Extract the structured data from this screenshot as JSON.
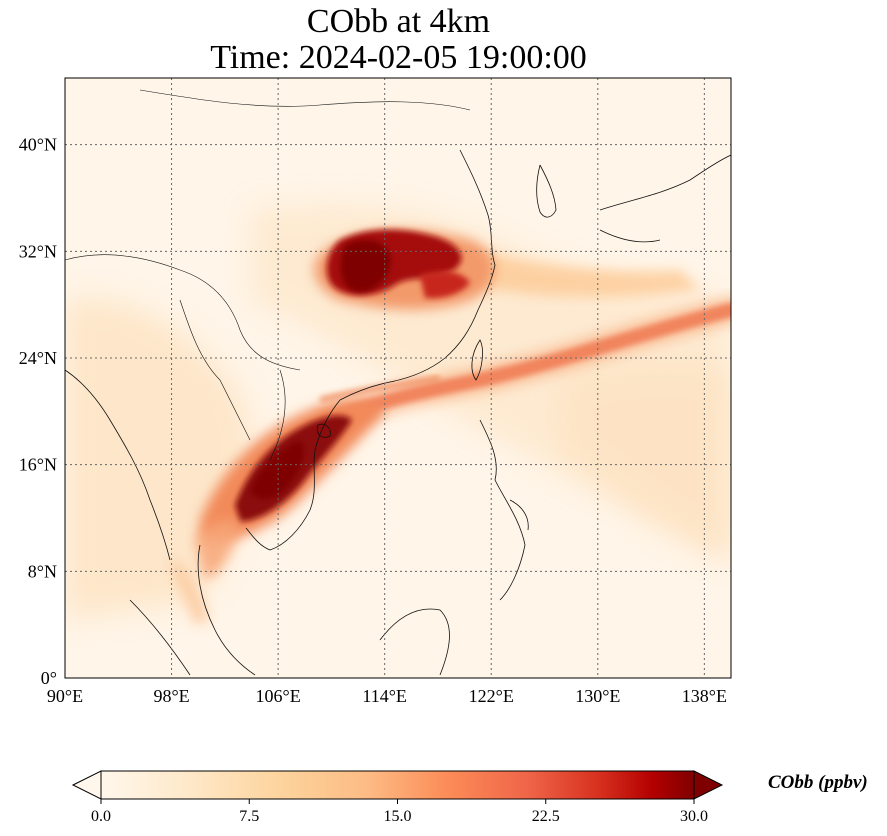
{
  "title": {
    "line1": "CObb at 4km",
    "line2": "Time: 2024-02-05 19:00:00"
  },
  "map": {
    "lon_range": [
      90,
      140
    ],
    "lat_range": [
      0,
      45
    ],
    "lon_ticks": [
      90,
      98,
      106,
      114,
      122,
      130,
      138
    ],
    "lat_ticks": [
      0,
      8,
      16,
      24,
      32,
      40
    ],
    "lon_tick_labels": [
      "90°E",
      "98°E",
      "106°E",
      "114°E",
      "122°E",
      "130°E",
      "138°E"
    ],
    "lat_tick_labels": [
      "0°",
      "8°N",
      "16°N",
      "24°N",
      "32°N",
      "40°N"
    ],
    "gridlines": true,
    "colormap": "OrRd",
    "colors": {
      "low": "#fff7ec",
      "mid": "#fdbb84",
      "high": "#7f0000"
    }
  },
  "colorbar": {
    "label": "CObb (ppbv)",
    "range": [
      0,
      30
    ],
    "extend": "both",
    "ticks": [
      0,
      7.5,
      15,
      22.5,
      30
    ],
    "tick_labels": [
      "0.0",
      "7.5",
      "15.0",
      "22.5",
      "30.0"
    ]
  }
}
